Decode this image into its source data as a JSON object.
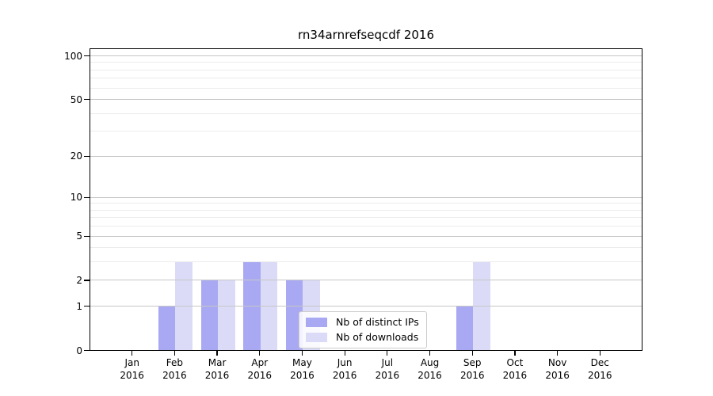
{
  "title": "rn34arnrefseqcdf 2016",
  "legend": {
    "items": [
      {
        "label": "Nb of distinct IPs",
        "color": "#a9a9f3"
      },
      {
        "label": "Nb of downloads",
        "color": "#dbdbf8"
      }
    ]
  },
  "colors": {
    "bar_distinct_ips": "#a9a9f3",
    "bar_downloads": "#dbdbf8",
    "grid_major": "#c6c6c6",
    "grid_minor": "#ececec",
    "axis": "#000000",
    "background": "#ffffff"
  },
  "chart_data": {
    "type": "bar",
    "title": "rn34arnrefseqcdf 2016",
    "categories": [
      "Jan 2016",
      "Feb 2016",
      "Mar 2016",
      "Apr 2016",
      "May 2016",
      "Jun 2016",
      "Jul 2016",
      "Aug 2016",
      "Sep 2016",
      "Oct 2016",
      "Nov 2016",
      "Dec 2016"
    ],
    "series": [
      {
        "name": "Nb of distinct IPs",
        "color": "#a9a9f3",
        "values": [
          0,
          1,
          2,
          3,
          2,
          0,
          0,
          0,
          1,
          0,
          0,
          0
        ]
      },
      {
        "name": "Nb of downloads",
        "color": "#dbdbf8",
        "values": [
          0,
          3,
          2,
          3,
          2,
          0,
          0,
          0,
          3,
          0,
          0,
          0
        ]
      }
    ],
    "yscale": "log1p",
    "ylim": [
      0,
      100
    ],
    "yticks": [
      0,
      1,
      2,
      5,
      10,
      20,
      50,
      100
    ],
    "minor_gridlines": [
      1,
      2,
      3,
      4,
      5,
      6,
      7,
      8,
      9,
      10,
      20,
      30,
      40,
      50,
      60,
      70,
      80,
      90,
      100
    ],
    "grid": true,
    "legend_position": "lower center"
  }
}
